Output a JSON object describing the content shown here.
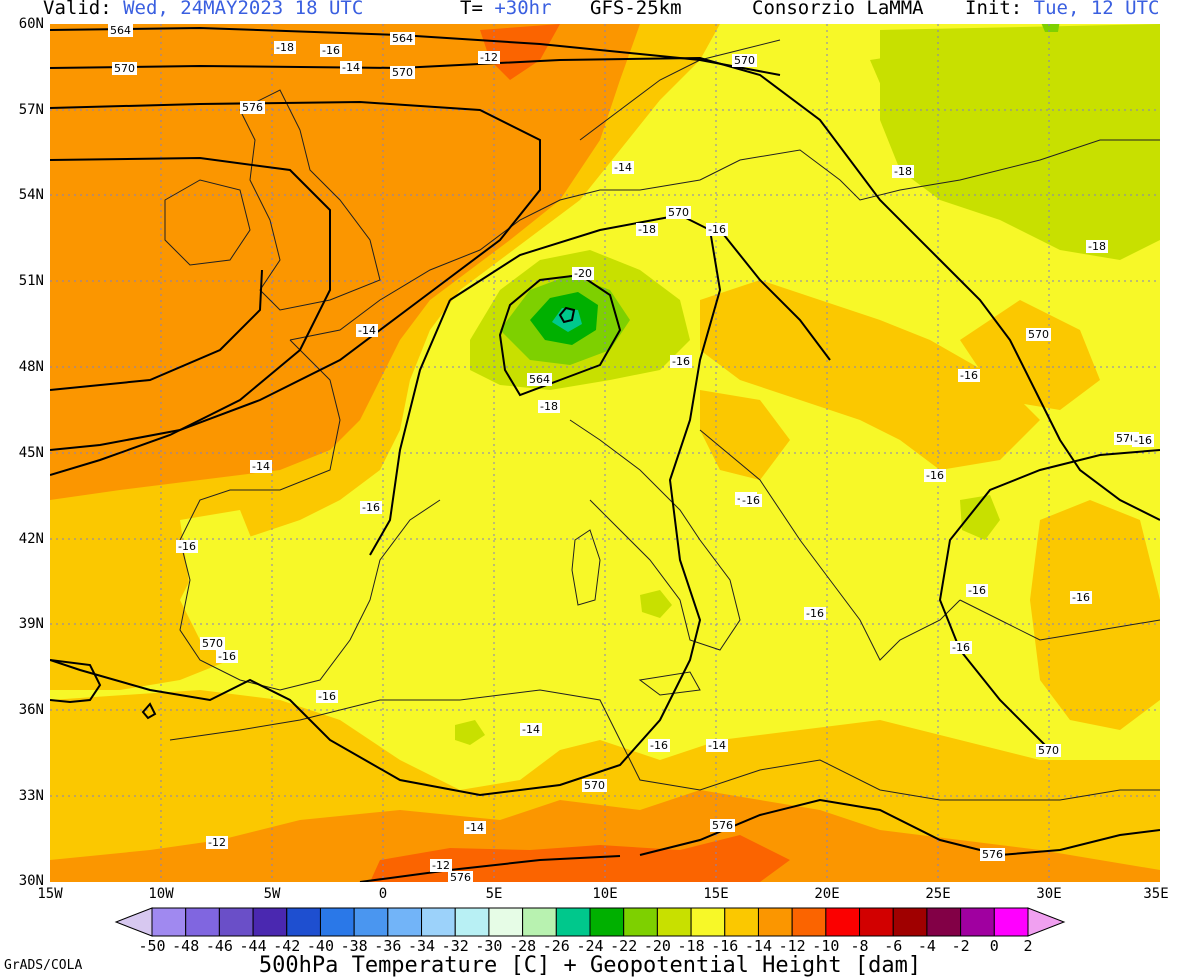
{
  "header": {
    "valid_label": "Valid:",
    "valid_value": "Wed, 24MAY2023 18 UTC",
    "t_label": "T=",
    "t_value": "+30hr",
    "model": "GFS-25km",
    "provider": "Consorzio LaMMA",
    "init_label": "Init:",
    "init_value": "Tue, 12 UTC"
  },
  "axes": {
    "lat_labels": [
      "60N",
      "57N",
      "54N",
      "51N",
      "48N",
      "45N",
      "42N",
      "39N",
      "36N",
      "33N",
      "30N"
    ],
    "lon_labels": [
      "15W",
      "10W",
      "5W",
      "0",
      "5E",
      "10E",
      "15E",
      "20E",
      "25E",
      "30E",
      "35E"
    ]
  },
  "colorbar": {
    "labels": [
      "-50",
      "-48",
      "-46",
      "-44",
      "-42",
      "-40",
      "-38",
      "-36",
      "-34",
      "-32",
      "-30",
      "-28",
      "-26",
      "-24",
      "-22",
      "-20",
      "-18",
      "-16",
      "-14",
      "-12",
      "-10",
      "-8",
      "-6",
      "-4",
      "-2",
      "0",
      "2"
    ],
    "colors": [
      "#d7c8f0",
      "#a089f0",
      "#8066e0",
      "#6a4fc8",
      "#4a28b0",
      "#1e4fd0",
      "#2a78e8",
      "#4a96f0",
      "#72b4f8",
      "#9cd2fa",
      "#b8f0f4",
      "#e6fce6",
      "#b8f2b0",
      "#00c88c",
      "#00b000",
      "#7ed000",
      "#c8e000",
      "#f7f828",
      "#fbc800",
      "#fb9600",
      "#fb6400",
      "#fb0000",
      "#d20000",
      "#a00000",
      "#820046",
      "#a000a0",
      "#ff00ff",
      "#f0a0f0"
    ]
  },
  "footer": {
    "credit": "GrADS/COLA",
    "title": "500hPa Temperature [C] + Geopotential Height [dam]"
  },
  "contour_labels": [
    {
      "text": "564"
    },
    {
      "text": "-18"
    },
    {
      "text": "-16"
    },
    {
      "text": "564"
    },
    {
      "text": "-12"
    },
    {
      "text": "570"
    },
    {
      "text": "-14"
    },
    {
      "text": "570"
    },
    {
      "text": "570"
    },
    {
      "text": "576"
    },
    {
      "text": "-14"
    },
    {
      "text": "-18"
    },
    {
      "text": "570"
    },
    {
      "text": "-18"
    },
    {
      "text": "-16"
    },
    {
      "text": "-18"
    },
    {
      "text": "-20"
    },
    {
      "text": "-14"
    },
    {
      "text": "570"
    },
    {
      "text": "-16"
    },
    {
      "text": "564"
    },
    {
      "text": "-16"
    },
    {
      "text": "-18"
    },
    {
      "text": "-14"
    },
    {
      "text": "570"
    },
    {
      "text": "-16"
    },
    {
      "text": "-16"
    },
    {
      "text": "-16"
    },
    {
      "text": "-16"
    },
    {
      "text": "-16"
    },
    {
      "text": "-16"
    },
    {
      "text": "-16"
    },
    {
      "text": "-16"
    },
    {
      "text": "570"
    },
    {
      "text": "-16"
    },
    {
      "text": "-16"
    },
    {
      "text": "-16"
    },
    {
      "text": "-16"
    },
    {
      "text": "-14"
    },
    {
      "text": "570"
    },
    {
      "text": "-16"
    },
    {
      "text": "570"
    },
    {
      "text": "-14"
    },
    {
      "text": "-14"
    },
    {
      "text": "576"
    },
    {
      "text": "-12"
    },
    {
      "text": "576"
    },
    {
      "text": "-12"
    },
    {
      "text": "576"
    }
  ]
}
